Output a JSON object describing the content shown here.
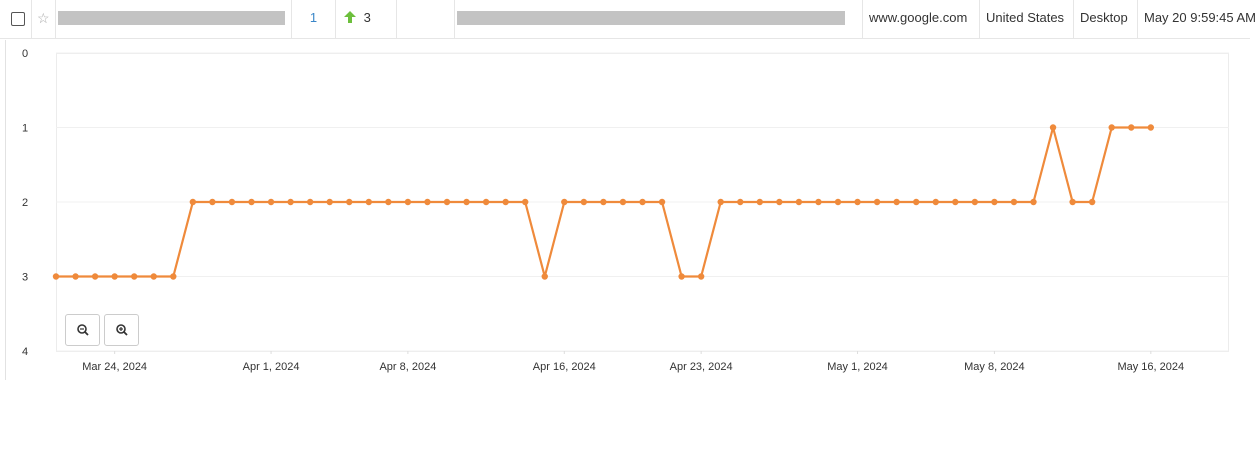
{
  "row": {
    "rank": "1",
    "change": "3",
    "engine": "www.google.com",
    "location": "United States",
    "device": "Desktop",
    "updated": "May 20 9:59:45 AM"
  },
  "chart_data": {
    "type": "line",
    "x": [
      "2024-03-21",
      "2024-03-22",
      "2024-03-23",
      "2024-03-24",
      "2024-03-25",
      "2024-03-26",
      "2024-03-27",
      "2024-03-28",
      "2024-03-29",
      "2024-03-30",
      "2024-03-31",
      "2024-04-01",
      "2024-04-02",
      "2024-04-03",
      "2024-04-04",
      "2024-04-05",
      "2024-04-06",
      "2024-04-07",
      "2024-04-08",
      "2024-04-09",
      "2024-04-10",
      "2024-04-11",
      "2024-04-12",
      "2024-04-13",
      "2024-04-14",
      "2024-04-15",
      "2024-04-16",
      "2024-04-17",
      "2024-04-18",
      "2024-04-19",
      "2024-04-20",
      "2024-04-21",
      "2024-04-22",
      "2024-04-23",
      "2024-04-24",
      "2024-04-25",
      "2024-04-26",
      "2024-04-27",
      "2024-04-28",
      "2024-04-29",
      "2024-04-30",
      "2024-05-01",
      "2024-05-02",
      "2024-05-03",
      "2024-05-04",
      "2024-05-05",
      "2024-05-06",
      "2024-05-07",
      "2024-05-08",
      "2024-05-09",
      "2024-05-10",
      "2024-05-11",
      "2024-05-12",
      "2024-05-13",
      "2024-05-14",
      "2024-05-15",
      "2024-05-16"
    ],
    "series": [
      {
        "color": "#ef8a3b",
        "values": [
          3,
          3,
          3,
          3,
          3,
          3,
          3,
          2,
          2,
          2,
          2,
          2,
          2,
          2,
          2,
          2,
          2,
          2,
          2,
          2,
          2,
          2,
          2,
          2,
          2,
          3,
          2,
          2,
          2,
          2,
          2,
          2,
          3,
          3,
          2,
          2,
          2,
          2,
          2,
          2,
          2,
          2,
          2,
          2,
          2,
          2,
          2,
          2,
          2,
          2,
          2,
          1,
          2,
          2,
          1,
          1,
          1
        ]
      }
    ],
    "xlim": [
      "2024-03-21",
      "2024-05-20"
    ],
    "xticks": [
      {
        "value": "2024-03-24",
        "label": "Mar 24, 2024"
      },
      {
        "value": "2024-04-01",
        "label": "Apr 1, 2024"
      },
      {
        "value": "2024-04-08",
        "label": "Apr 8, 2024"
      },
      {
        "value": "2024-04-16",
        "label": "Apr 16, 2024"
      },
      {
        "value": "2024-04-23",
        "label": "Apr 23, 2024"
      },
      {
        "value": "2024-05-01",
        "label": "May 1, 2024"
      },
      {
        "value": "2024-05-08",
        "label": "May 8, 2024"
      },
      {
        "value": "2024-05-16",
        "label": "May 16, 2024"
      }
    ],
    "ylim": [
      0,
      4
    ],
    "yticks": [
      0,
      1,
      2,
      3,
      4
    ],
    "y_reversed": true,
    "grid": true
  }
}
